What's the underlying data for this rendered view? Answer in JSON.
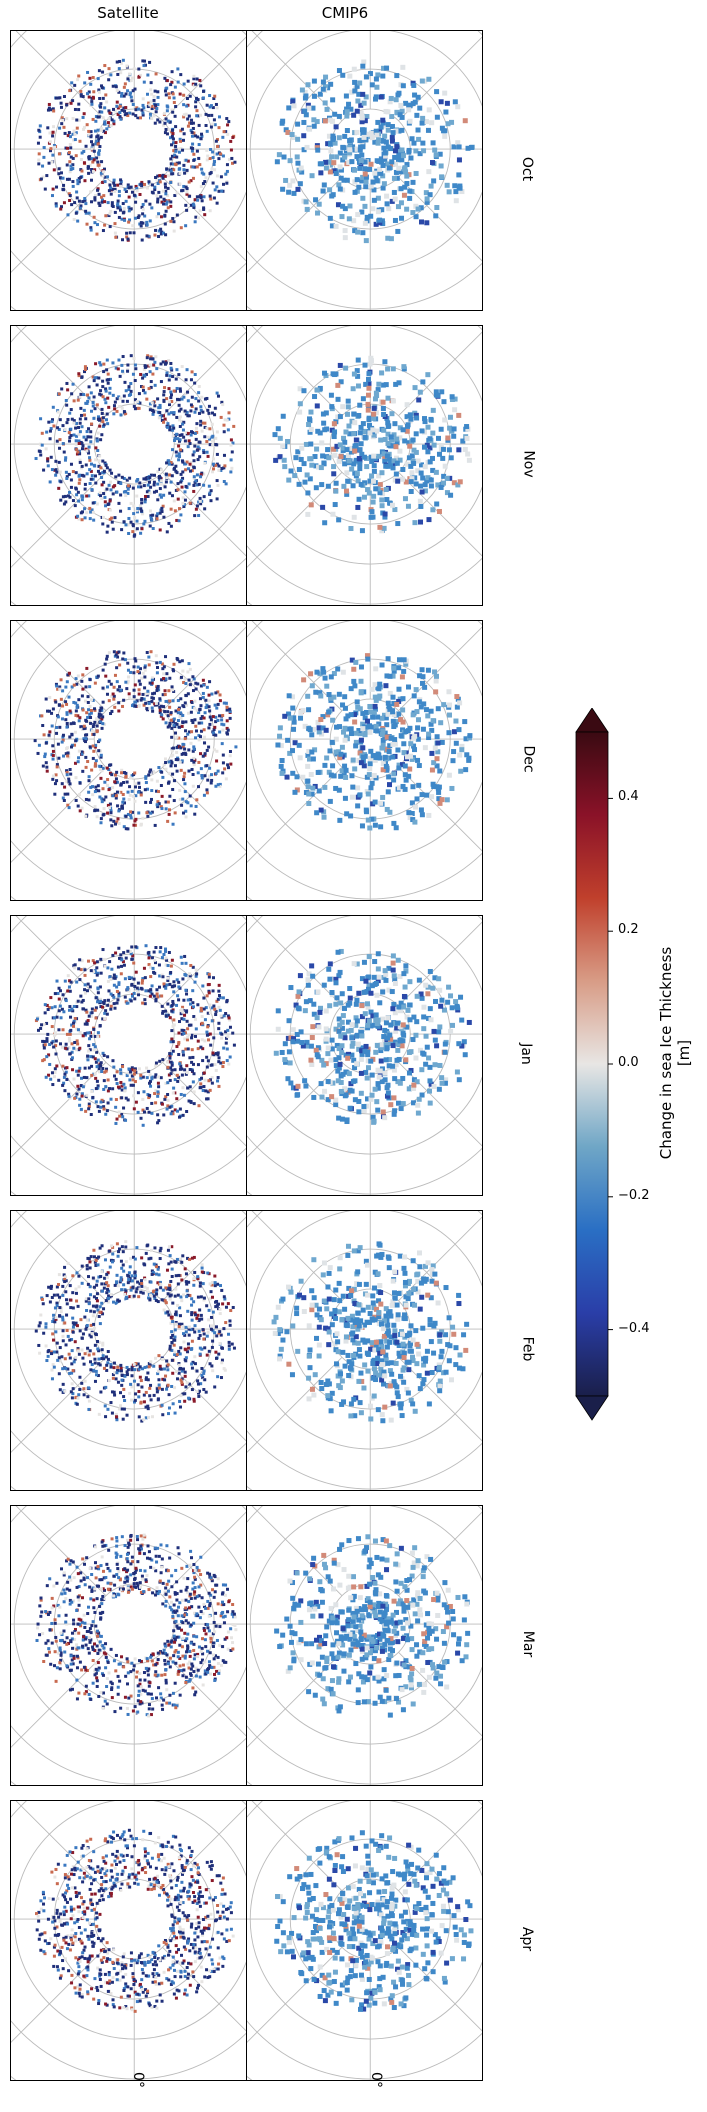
{
  "columns": [
    "Satellite",
    "CMIP6"
  ],
  "rows": [
    "Oct",
    "Nov",
    "Dec",
    "Jan",
    "Feb",
    "Mar",
    "Apr"
  ],
  "bottom_labels": [
    "0°",
    "0°"
  ],
  "colorbar": {
    "label_line1": "Change in sea Ice Thickness",
    "label_line2": "[m]",
    "ticks": [
      "0.4",
      "0.2",
      "0.0",
      "−0.2",
      "−0.4"
    ],
    "tick_values": [
      0.4,
      0.2,
      0.0,
      -0.2,
      -0.4
    ],
    "vmin": -0.5,
    "vmax": 0.5,
    "colors": [
      "#1a1f4a",
      "#2a3ea8",
      "#2a6fc4",
      "#6fa6c6",
      "#e8e6e4",
      "#d89c86",
      "#c0402c",
      "#8a1228",
      "#3a0a12"
    ]
  },
  "chart_data": {
    "type": "heatmap",
    "description_variable": "Change in sea Ice Thickness [m]",
    "columns": [
      "Satellite",
      "CMIP6"
    ],
    "rows": [
      "Oct",
      "Nov",
      "Dec",
      "Jan",
      "Feb",
      "Mar",
      "Apr"
    ],
    "colorbar_range": [
      -0.5,
      0.5
    ],
    "colorbar_ticks": [
      0.4,
      0.2,
      0.0,
      -0.2,
      -0.4
    ]
  }
}
